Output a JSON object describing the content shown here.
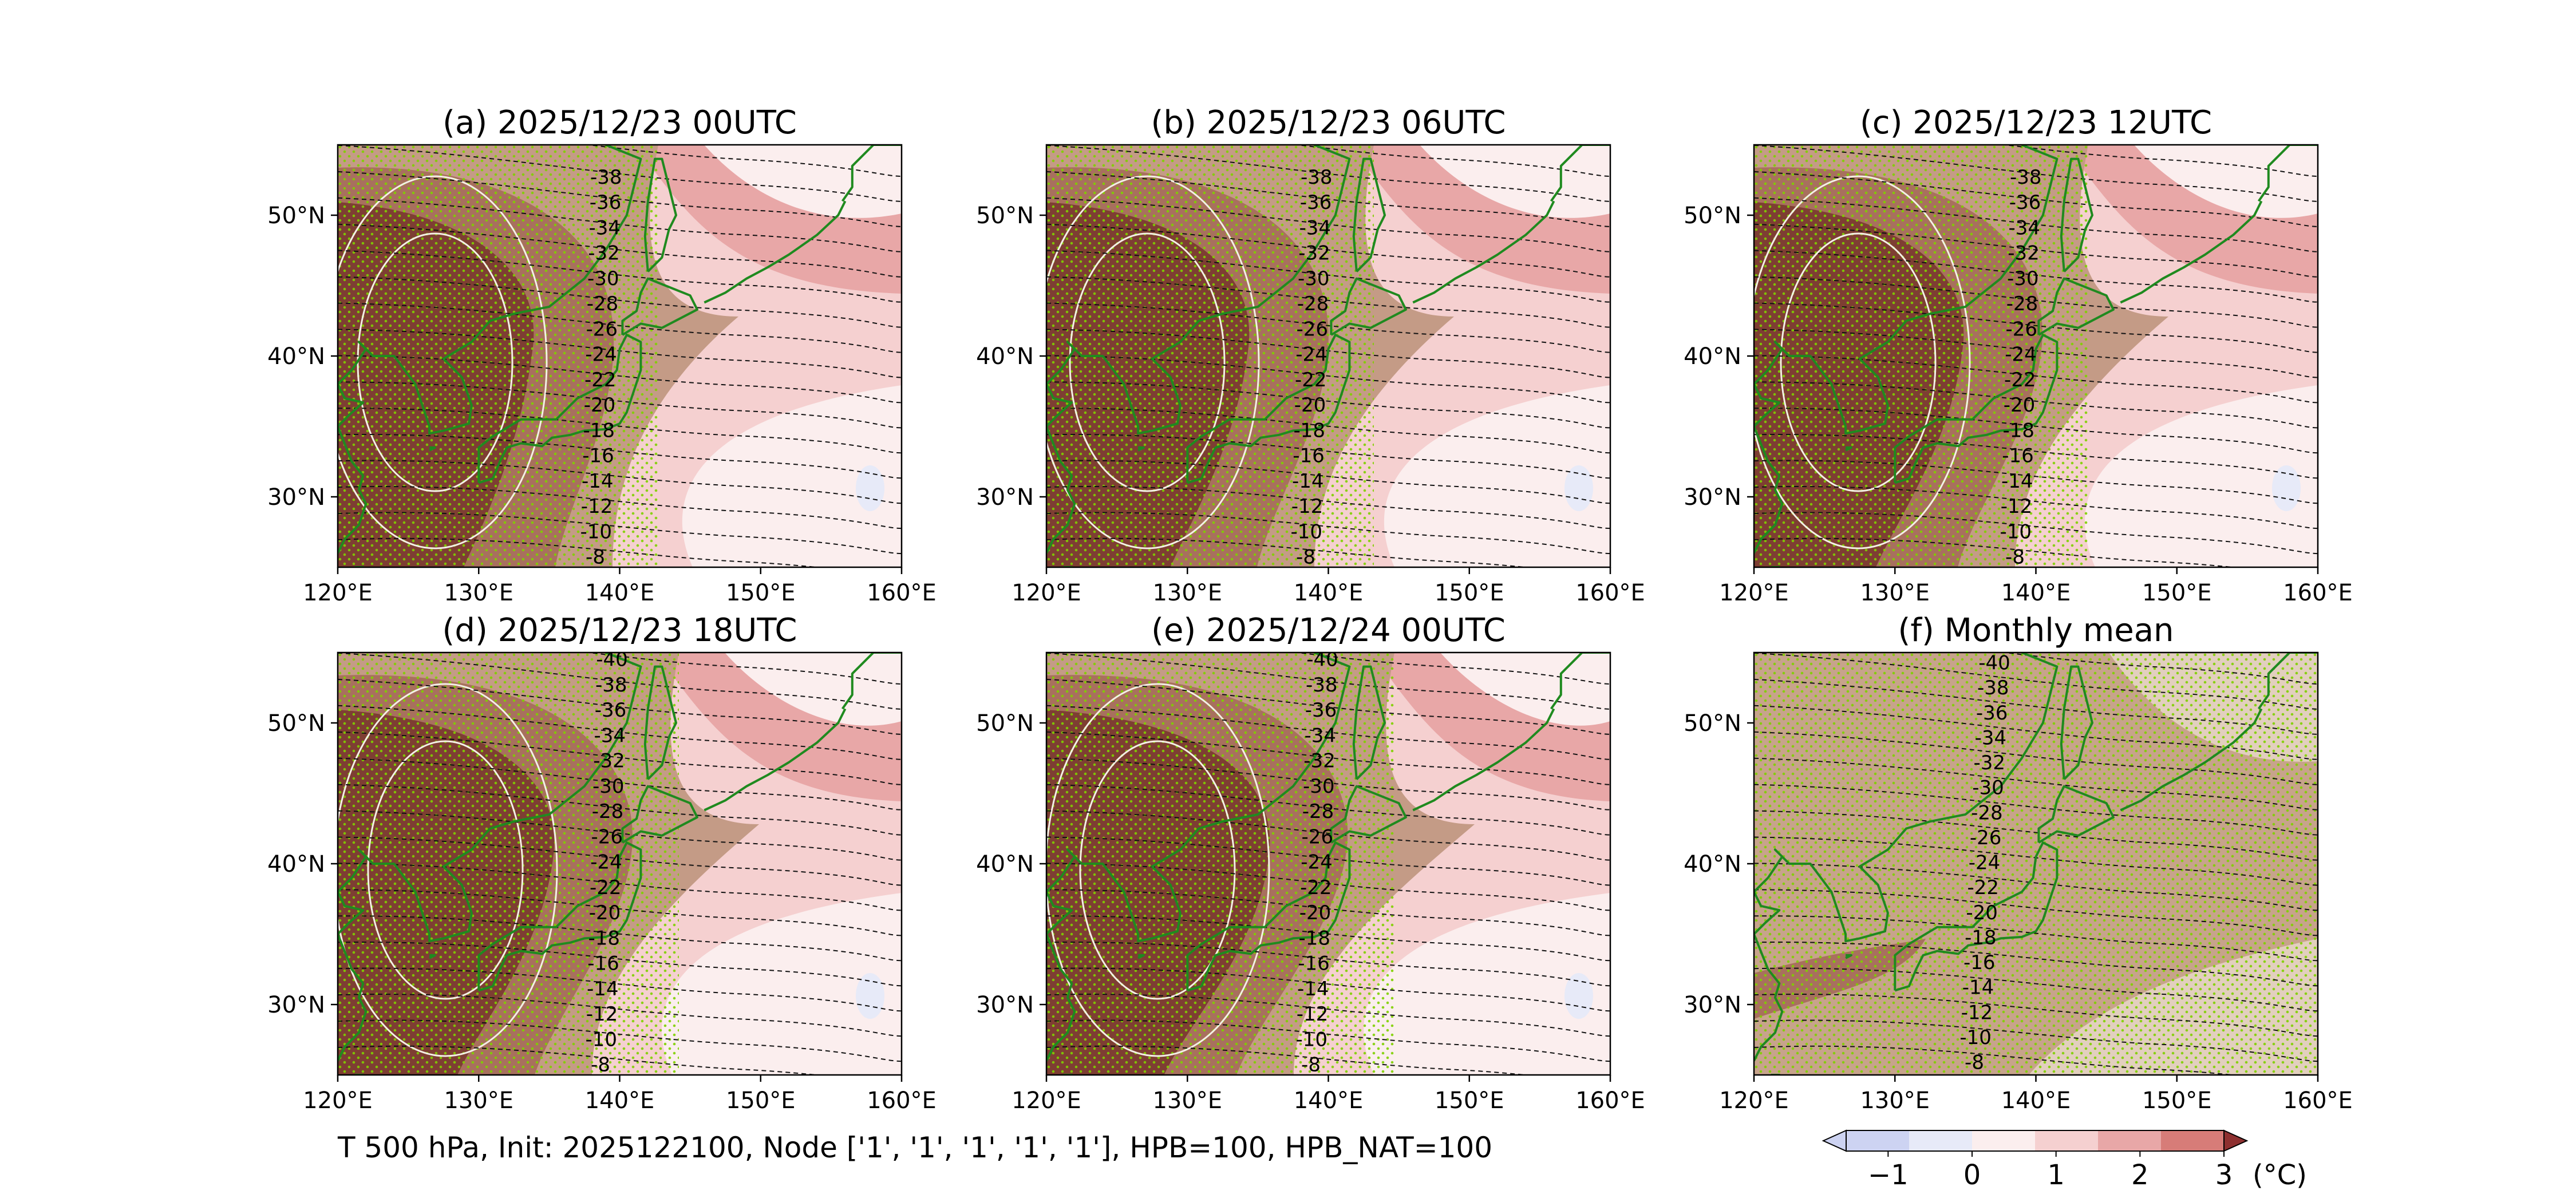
{
  "figure": {
    "caption": "T 500 hPa, Init: 2025122100, Node ['1', '1', '1', '1', '1'], HPB=100, HPB_NAT=100",
    "lat_ticks": [
      "30°N",
      "40°N",
      "50°N"
    ],
    "lon_ticks": [
      "120°E",
      "130°E",
      "140°E",
      "150°E",
      "160°E"
    ],
    "panels": [
      {
        "title": "(a) 2025/12/23 00UTC",
        "kind": "forecast",
        "phase": 0.0
      },
      {
        "title": "(b) 2025/12/23 06UTC",
        "kind": "forecast",
        "phase": 0.3
      },
      {
        "title": "(c) 2025/12/23 12UTC",
        "kind": "forecast",
        "phase": 0.6
      },
      {
        "title": "(d) 2025/12/23 18UTC",
        "kind": "forecast",
        "phase": 0.9
      },
      {
        "title": "(e) 2025/12/24 00UTC",
        "kind": "forecast",
        "phase": 1.2
      },
      {
        "title": "(f) Monthly mean",
        "kind": "mean",
        "phase": 0.0
      }
    ],
    "contour_labels": [
      "-40",
      "-38",
      "-36",
      "-34",
      "-32",
      "-30",
      "-28",
      "-26",
      "-24",
      "-22",
      "-20",
      "-18",
      "-16",
      "-14",
      "-12",
      "-10",
      "-8"
    ]
  },
  "colorbar": {
    "ticks": [
      "−1",
      "0",
      "1",
      "2",
      "3"
    ],
    "unit": "(°C)",
    "colors": [
      "#cdd3f2",
      "#e7eaf8",
      "#fbeeee",
      "#f5d0d0",
      "#e8a7a7",
      "#d77c78",
      "#b65450",
      "#8e3030"
    ]
  },
  "map_colors": {
    "land": "#1f8a1f",
    "stipple": "#7fd000",
    "spread_dark": "#7e3e33",
    "spread_mid": "#a8705e",
    "spread_light": "#c49b86"
  }
}
